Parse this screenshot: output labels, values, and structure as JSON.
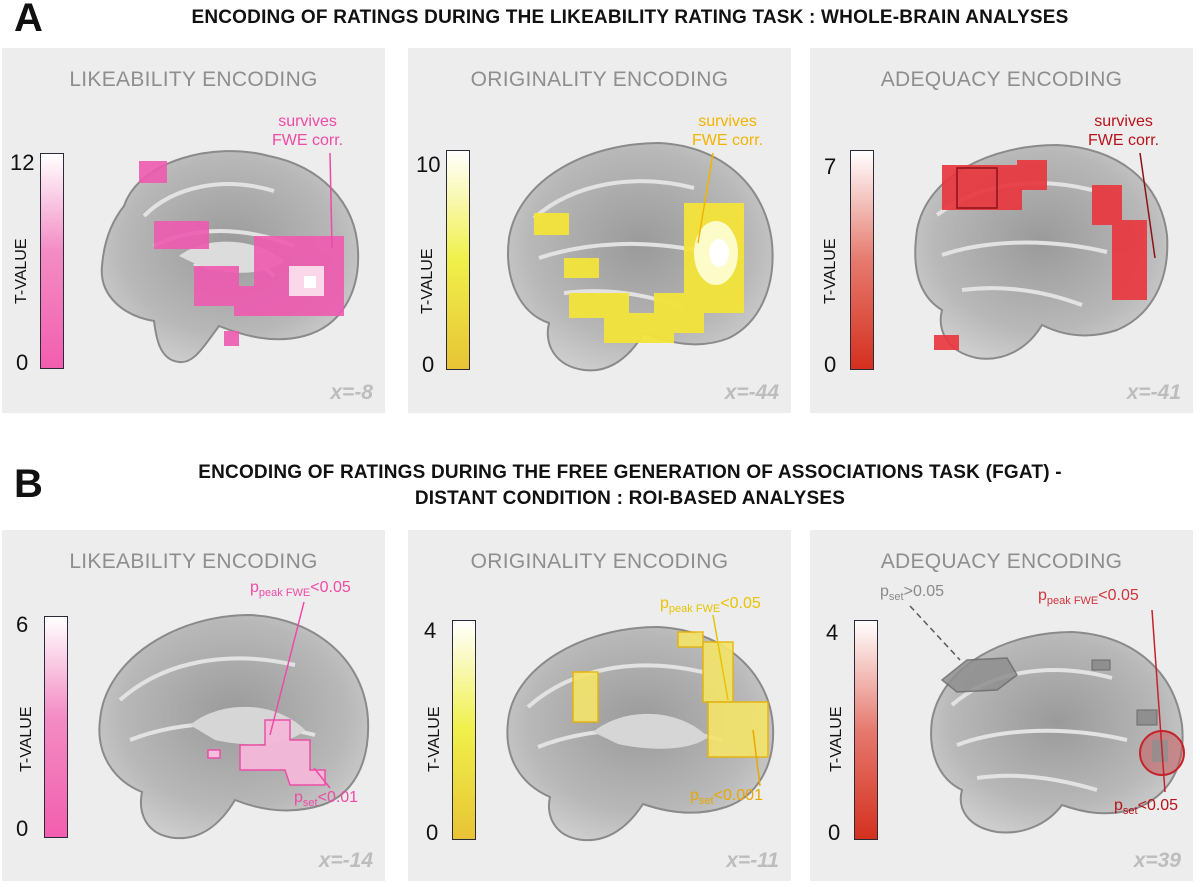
{
  "section_a": {
    "letter": "A",
    "title": "ENCODING OF RATINGS DURING THE LIKEABILITY RATING TASK : WHOLE-BRAIN ANALYSES",
    "panels": [
      {
        "title": "LIKEABILITY ENCODING",
        "cmax": "12",
        "cmin": "0",
        "unit": "T-VALUE",
        "coord": "x=-8",
        "annot_line1": "survives",
        "annot_line2": "FWE corr.",
        "color": "#ee4aa6"
      },
      {
        "title": "ORIGINALITY ENCODING",
        "cmax": "10",
        "cmin": "0",
        "unit": "T-VALUE",
        "coord": "x=-44",
        "annot_line1": "survives",
        "annot_line2": "FWE corr.",
        "color": "#f3b400"
      },
      {
        "title": "ADEQUACY ENCODING",
        "cmax": "7",
        "cmin": "0",
        "unit": "T-VALUE",
        "coord": "x=-41",
        "annot_line1": "survives",
        "annot_line2": "FWE corr.",
        "color": "#b8121b"
      }
    ]
  },
  "section_b": {
    "letter": "B",
    "title_line1": "ENCODING OF RATINGS DURING THE FREE GENERATION OF ASSOCIATIONS TASK (FGAT) -",
    "title_line2": "DISTANT CONDITION : ROI-BASED ANALYSES",
    "panels": [
      {
        "title": "LIKEABILITY ENCODING",
        "cmax": "6",
        "cmin": "0",
        "unit": "T-VALUE",
        "coord": "x=-14",
        "peak_p": "p",
        "peak_sub": "peak FWE",
        "peak_val": "<0.05",
        "set_p": "p",
        "set_sub": "set",
        "set_val": "<0.01",
        "color": "#ee4aa6"
      },
      {
        "title": "ORIGINALITY ENCODING",
        "cmax": "4",
        "cmin": "0",
        "unit": "T-VALUE",
        "coord": "x=-11",
        "peak_p": "p",
        "peak_sub": "peak FWE",
        "peak_val": "<0.05",
        "set_p": "p",
        "set_sub": "set",
        "set_val": "<0.001",
        "color": "#e8b400"
      },
      {
        "title": "ADEQUACY ENCODING",
        "cmax": "4",
        "cmin": "0",
        "unit": "T-VALUE",
        "coord": "x=39",
        "gray_p": "p",
        "gray_sub": "set",
        "gray_val": ">0.05",
        "peak_p": "p",
        "peak_sub": "peak FWE",
        "peak_val": "<0.05",
        "set_p": "p",
        "set_sub": "set",
        "set_val": "<0.05",
        "color": "#c4232b"
      }
    ]
  }
}
